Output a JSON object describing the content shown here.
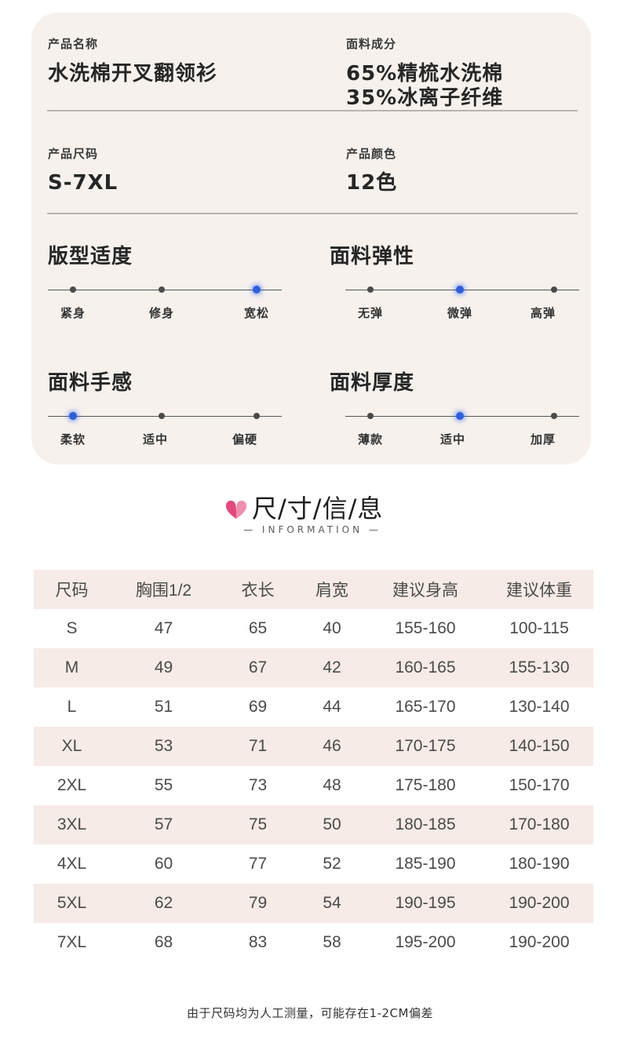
{
  "product": {
    "name_label": "产品名称",
    "name_value": "水洗棉开叉翻领衫",
    "fabric_label": "面料成分",
    "fabric_line1": "65%精梳水洗棉",
    "fabric_line2": "35%冰离子纤维",
    "size_label": "产品尺码",
    "size_value": "S-7XL",
    "color_label": "产品颜色",
    "color_value": "12色"
  },
  "scales": {
    "fit": {
      "title": "版型适度",
      "labels": [
        "紧身",
        "修身",
        "宽松"
      ],
      "selected_index": 2
    },
    "elasticity": {
      "title": "面料弹性",
      "labels": [
        "无弹",
        "微弹",
        "高弹"
      ],
      "selected_index": 1
    },
    "hand_feel": {
      "title": "面料手感",
      "labels": [
        "柔软",
        "适中",
        "偏硬"
      ],
      "selected_index": 0
    },
    "thickness": {
      "title": "面料厚度",
      "labels": [
        "薄款",
        "适中",
        "加厚"
      ],
      "selected_index": 1
    },
    "active_color": "#2f5fd8"
  },
  "section": {
    "heading": "尺/寸/信/息",
    "subheading": "— INFORMATION —",
    "heart_color": "#e24a7c"
  },
  "table": {
    "headers": [
      "尺码",
      "胸围1/2",
      "衣长",
      "肩宽",
      "建议身高",
      "建议体重"
    ],
    "rows": [
      [
        "S",
        "47",
        "65",
        "40",
        "155-160",
        "100-115"
      ],
      [
        "M",
        "49",
        "67",
        "42",
        "160-165",
        "155-130"
      ],
      [
        "L",
        "51",
        "69",
        "44",
        "165-170",
        "130-140"
      ],
      [
        "XL",
        "53",
        "71",
        "46",
        "170-175",
        "140-150"
      ],
      [
        "2XL",
        "55",
        "73",
        "48",
        "175-180",
        "150-170"
      ],
      [
        "3XL",
        "57",
        "75",
        "50",
        "180-185",
        "170-180"
      ],
      [
        "4XL",
        "60",
        "77",
        "52",
        "185-190",
        "180-190"
      ],
      [
        "5XL",
        "62",
        "79",
        "54",
        "190-195",
        "190-200"
      ],
      [
        "7XL",
        "68",
        "83",
        "58",
        "195-200",
        "190-200"
      ]
    ],
    "stripe_color": "#f6ebe6"
  },
  "note": "由于尺码均为人工测量，可能存在1-2CM偏差"
}
